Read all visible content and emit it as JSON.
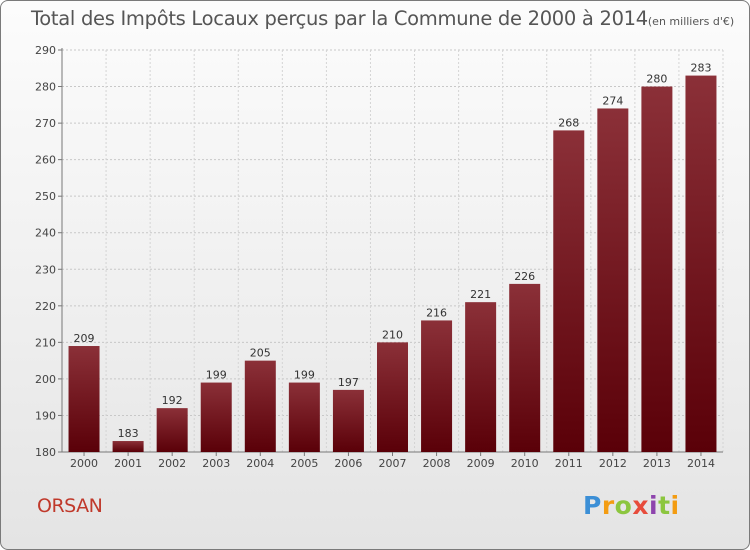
{
  "title": "Total des Impôts Locaux perçus par la Commune de 2000 à 2014",
  "unit_note": "(en milliers d'€)",
  "commune": "ORSAN",
  "logo": {
    "text": "Proxiti"
  },
  "colors": {
    "bar_top": "#8b3038",
    "bar_bottom": "#5a0008",
    "commune": "#c0392b"
  },
  "chart_data": {
    "type": "bar",
    "title": "Total des Impôts Locaux perçus par la Commune de 2000 à 2014",
    "xlabel": "",
    "ylabel": "",
    "ylim": [
      180,
      290
    ],
    "yticks": [
      180,
      190,
      200,
      210,
      220,
      230,
      240,
      250,
      260,
      270,
      280,
      290
    ],
    "grid": true,
    "categories": [
      "2000",
      "2001",
      "2002",
      "2003",
      "2004",
      "2005",
      "2006",
      "2007",
      "2008",
      "2009",
      "2010",
      "2011",
      "2012",
      "2013",
      "2014"
    ],
    "values": [
      209,
      183,
      192,
      199,
      205,
      199,
      197,
      210,
      216,
      221,
      226,
      268,
      274,
      280,
      283
    ]
  }
}
